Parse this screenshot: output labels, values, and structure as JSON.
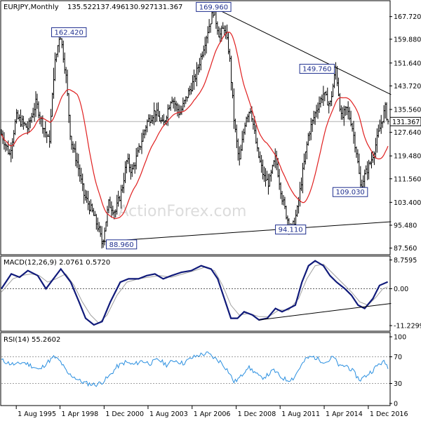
{
  "chart_data": {
    "type": "ohlc",
    "header": {
      "symbol": "EURJPY,Monthly",
      "open": "135.522",
      "high": "137.496",
      "low": "130.927",
      "close": "131.367"
    },
    "last_price_label": "131.367",
    "watermark": "ActionForex.com",
    "price_axis_ticks": [
      "167.720",
      "159.880",
      "151.640",
      "143.720",
      "135.560",
      "127.640",
      "119.480",
      "111.560",
      "103.400",
      "95.480",
      "87.560"
    ],
    "price_ylim": [
      86.0,
      172.0
    ],
    "time_axis_labels": [
      {
        "label": "1 Aug 1995",
        "t": 1995.6
      },
      {
        "label": "1 Apr 1998",
        "t": 1998.25
      },
      {
        "label": "1 Dec 2000",
        "t": 2000.92
      },
      {
        "label": "1 Aug 2003",
        "t": 2003.58
      },
      {
        "label": "1 Apr 2006",
        "t": 2006.25
      },
      {
        "label": "1 Dec 2008",
        "t": 2008.92
      },
      {
        "label": "1 Aug 2011",
        "t": 2011.58
      },
      {
        "label": "1 Apr 2014",
        "t": 2014.25
      },
      {
        "label": "1 Dec 2016",
        "t": 2016.92
      }
    ],
    "time_range": [
      1994.7,
      2018.2
    ],
    "price_path": [
      [
        1994.7,
        127
      ],
      [
        1995.2,
        120
      ],
      [
        1995.6,
        133
      ],
      [
        1996.3,
        129
      ],
      [
        1996.8,
        138
      ],
      [
        1997.1,
        132
      ],
      [
        1997.6,
        124
      ],
      [
        1997.9,
        150
      ],
      [
        1998.25,
        162.42
      ],
      [
        1998.6,
        148
      ],
      [
        1998.9,
        125
      ],
      [
        1999.3,
        117
      ],
      [
        1999.7,
        106
      ],
      [
        2000.2,
        100
      ],
      [
        2000.6,
        94
      ],
      [
        2000.8,
        88.96
      ],
      [
        2001.2,
        103
      ],
      [
        2001.6,
        100
      ],
      [
        2002.0,
        108
      ],
      [
        2002.3,
        118
      ],
      [
        2002.6,
        114
      ],
      [
        2003.0,
        121
      ],
      [
        2003.5,
        131
      ],
      [
        2004.0,
        135
      ],
      [
        2004.5,
        130
      ],
      [
        2005.0,
        140
      ],
      [
        2005.5,
        134
      ],
      [
        2006.0,
        141
      ],
      [
        2006.4,
        146
      ],
      [
        2006.8,
        154
      ],
      [
        2007.2,
        163
      ],
      [
        2007.55,
        169.96
      ],
      [
        2007.9,
        161
      ],
      [
        2008.2,
        164
      ],
      [
        2008.5,
        155
      ],
      [
        2008.8,
        131
      ],
      [
        2009.1,
        117
      ],
      [
        2009.5,
        133
      ],
      [
        2009.8,
        136
      ],
      [
        2010.2,
        121
      ],
      [
        2010.6,
        112
      ],
      [
        2010.9,
        110
      ],
      [
        2011.3,
        119
      ],
      [
        2011.7,
        105
      ],
      [
        2012.0,
        98
      ],
      [
        2012.3,
        94.11
      ],
      [
        2012.6,
        100
      ],
      [
        2012.9,
        112
      ],
      [
        2013.3,
        127
      ],
      [
        2013.8,
        136
      ],
      [
        2014.2,
        141
      ],
      [
        2014.6,
        137
      ],
      [
        2014.95,
        149.76
      ],
      [
        2015.3,
        132
      ],
      [
        2015.6,
        136
      ],
      [
        2015.9,
        131
      ],
      [
        2016.2,
        121
      ],
      [
        2016.45,
        109.03
      ],
      [
        2016.8,
        114
      ],
      [
        2017.1,
        118
      ],
      [
        2017.4,
        124
      ],
      [
        2017.7,
        131
      ],
      [
        2017.95,
        136
      ],
      [
        2018.1,
        131.367
      ]
    ],
    "price_labels": [
      {
        "text": "162.420",
        "t": 1998.25,
        "v": 162.42
      },
      {
        "text": "169.960",
        "t": 2007.55,
        "v": 169.96
      },
      {
        "text": "88.960",
        "t": 2000.8,
        "v": 88.96
      },
      {
        "text": "149.760",
        "t": 2014.95,
        "v": 149.76
      },
      {
        "text": "94.110",
        "t": 2012.3,
        "v": 94.11
      },
      {
        "text": "109.030",
        "t": 2016.45,
        "v": 109.03
      }
    ],
    "trendlines": [
      {
        "t1": 2007.55,
        "v1": 170.9,
        "t2": 2018.3,
        "v2": 140.7
      },
      {
        "t1": 2000.8,
        "v1": 89.8,
        "t2": 2018.3,
        "v2": 96.7
      }
    ],
    "macd": {
      "label": "MACD(12,26,9) 2.0761 0.5720",
      "ticks": [
        "8.7595",
        "0.00",
        "-11.2299"
      ],
      "ylim": [
        -12.5,
        9.5
      ],
      "zero": 0,
      "main_path": [
        [
          1994.7,
          0
        ],
        [
          1995.3,
          4.5
        ],
        [
          1995.8,
          3.5
        ],
        [
          1996.3,
          5.5
        ],
        [
          1996.9,
          4
        ],
        [
          1997.4,
          0
        ],
        [
          1997.7,
          2
        ],
        [
          1998.3,
          6
        ],
        [
          1998.9,
          2
        ],
        [
          1999.4,
          -4
        ],
        [
          1999.8,
          -9
        ],
        [
          2000.3,
          -11
        ],
        [
          2000.8,
          -10
        ],
        [
          2001.3,
          -4
        ],
        [
          2001.9,
          2
        ],
        [
          2002.4,
          3
        ],
        [
          2003.0,
          3
        ],
        [
          2003.5,
          4
        ],
        [
          2004.0,
          4.5
        ],
        [
          2004.5,
          3
        ],
        [
          2005.0,
          4
        ],
        [
          2005.6,
          5
        ],
        [
          2006.2,
          5.5
        ],
        [
          2006.8,
          7
        ],
        [
          2007.4,
          6
        ],
        [
          2007.8,
          3
        ],
        [
          2008.2,
          -3
        ],
        [
          2008.6,
          -9
        ],
        [
          2009.0,
          -9
        ],
        [
          2009.4,
          -7
        ],
        [
          2009.9,
          -8
        ],
        [
          2010.3,
          -9.5
        ],
        [
          2010.8,
          -9
        ],
        [
          2011.3,
          -6
        ],
        [
          2011.7,
          -7
        ],
        [
          2012.1,
          -6
        ],
        [
          2012.5,
          -5
        ],
        [
          2012.9,
          2
        ],
        [
          2013.3,
          7
        ],
        [
          2013.7,
          8.5
        ],
        [
          2014.2,
          7
        ],
        [
          2014.6,
          4
        ],
        [
          2015.0,
          2
        ],
        [
          2015.5,
          0
        ],
        [
          2015.9,
          -2
        ],
        [
          2016.3,
          -5
        ],
        [
          2016.7,
          -6
        ],
        [
          2017.2,
          -3
        ],
        [
          2017.6,
          1
        ],
        [
          2018.1,
          2.0761
        ]
      ],
      "signal_path": [
        [
          1994.7,
          -1
        ],
        [
          1995.4,
          3
        ],
        [
          1995.9,
          4
        ],
        [
          1996.5,
          4.5
        ],
        [
          1997.0,
          4
        ],
        [
          1997.5,
          2
        ],
        [
          1998.0,
          3
        ],
        [
          1998.6,
          4.5
        ],
        [
          1999.1,
          1
        ],
        [
          1999.6,
          -4
        ],
        [
          2000.1,
          -8
        ],
        [
          2000.6,
          -10.5
        ],
        [
          2001.1,
          -8
        ],
        [
          2001.7,
          -2
        ],
        [
          2002.3,
          2
        ],
        [
          2003.0,
          3
        ],
        [
          2003.6,
          3.5
        ],
        [
          2004.3,
          4
        ],
        [
          2005.0,
          3.5
        ],
        [
          2005.7,
          4.5
        ],
        [
          2006.4,
          5.5
        ],
        [
          2007.0,
          6.5
        ],
        [
          2007.6,
          5.5
        ],
        [
          2008.1,
          1
        ],
        [
          2008.6,
          -5
        ],
        [
          2009.1,
          -8
        ],
        [
          2009.7,
          -7.5
        ],
        [
          2010.3,
          -8.5
        ],
        [
          2010.9,
          -8.5
        ],
        [
          2011.5,
          -6.5
        ],
        [
          2012.1,
          -6.5
        ],
        [
          2012.7,
          -3
        ],
        [
          2013.2,
          3
        ],
        [
          2013.7,
          7
        ],
        [
          2014.2,
          7.5
        ],
        [
          2014.8,
          4.5
        ],
        [
          2015.4,
          1.5
        ],
        [
          2015.9,
          -1
        ],
        [
          2016.4,
          -4
        ],
        [
          2016.9,
          -5
        ],
        [
          2017.4,
          -2.5
        ],
        [
          2017.8,
          0
        ],
        [
          2018.1,
          0.572
        ]
      ],
      "trendline": {
        "t1": 2010.3,
        "v1": -9.5,
        "t2": 2018.3,
        "v2": -4.5
      }
    },
    "rsi": {
      "label": "RSI(14) 55.2602",
      "ticks": [
        "100",
        "70",
        "30",
        "0"
      ],
      "levels": [
        70,
        30
      ],
      "ylim": [
        0,
        100
      ],
      "path": [
        [
          1994.7,
          65
        ],
        [
          1995.2,
          60
        ],
        [
          1995.6,
          58
        ],
        [
          1996.0,
          62
        ],
        [
          1996.5,
          57
        ],
        [
          1997.0,
          50
        ],
        [
          1997.4,
          60
        ],
        [
          1997.9,
          70
        ],
        [
          1998.3,
          62
        ],
        [
          1998.7,
          45
        ],
        [
          1999.1,
          40
        ],
        [
          1999.5,
          33
        ],
        [
          1999.9,
          30
        ],
        [
          2000.4,
          28
        ],
        [
          2000.8,
          32
        ],
        [
          2001.2,
          40
        ],
        [
          2001.7,
          55
        ],
        [
          2002.2,
          62
        ],
        [
          2002.7,
          58
        ],
        [
          2003.2,
          64
        ],
        [
          2003.7,
          60
        ],
        [
          2004.2,
          66
        ],
        [
          2004.7,
          58
        ],
        [
          2005.2,
          65
        ],
        [
          2005.7,
          60
        ],
        [
          2006.2,
          68
        ],
        [
          2006.7,
          73
        ],
        [
          2007.2,
          75
        ],
        [
          2007.6,
          68
        ],
        [
          2008.0,
          62
        ],
        [
          2008.4,
          50
        ],
        [
          2008.8,
          32
        ],
        [
          2009.2,
          40
        ],
        [
          2009.6,
          55
        ],
        [
          2010.0,
          48
        ],
        [
          2010.4,
          38
        ],
        [
          2010.8,
          42
        ],
        [
          2011.2,
          50
        ],
        [
          2011.6,
          40
        ],
        [
          2012.0,
          35
        ],
        [
          2012.4,
          38
        ],
        [
          2012.8,
          55
        ],
        [
          2013.2,
          68
        ],
        [
          2013.6,
          70
        ],
        [
          2014.0,
          65
        ],
        [
          2014.4,
          62
        ],
        [
          2014.8,
          70
        ],
        [
          2015.2,
          55
        ],
        [
          2015.6,
          57
        ],
        [
          2016.0,
          48
        ],
        [
          2016.4,
          35
        ],
        [
          2016.8,
          42
        ],
        [
          2017.2,
          50
        ],
        [
          2017.6,
          60
        ],
        [
          2017.9,
          62
        ],
        [
          2018.1,
          55.26
        ]
      ]
    }
  }
}
